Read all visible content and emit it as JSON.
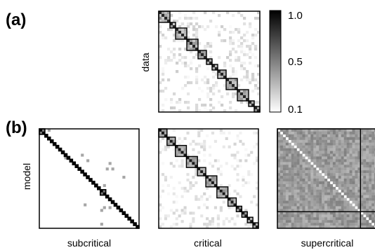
{
  "figure": {
    "panel_a_label": "(a)",
    "panel_b_label": "(b)",
    "row_label_data": "data",
    "row_label_model": "model",
    "col_labels": [
      "subcritical",
      "critical",
      "supercritical"
    ]
  },
  "colorbar": {
    "tick_labels": [
      "1.0",
      "0.5",
      "0.1"
    ],
    "ticks": [
      1.0,
      0.5,
      0.1
    ],
    "range": [
      0.1,
      1.0
    ],
    "colormap": "white-to-black grayscale"
  },
  "chart_data": [
    {
      "type": "heatmap",
      "panel": "(a)",
      "row_label": "data",
      "n": 36,
      "value_range": [
        0.1,
        1.0
      ],
      "blocks": [
        [
          0,
          4
        ],
        [
          4,
          2
        ],
        [
          6,
          4
        ],
        [
          10,
          4
        ],
        [
          14,
          3
        ],
        [
          17,
          2
        ],
        [
          19,
          2
        ],
        [
          21,
          3
        ],
        [
          24,
          4
        ],
        [
          28,
          4
        ],
        [
          32,
          2
        ],
        [
          34,
          2
        ]
      ],
      "description_level": "block-diagonal correlation with sparse weak off-diagonal values"
    },
    {
      "type": "heatmap",
      "panel": "(b)",
      "row_label": "model",
      "col_label": "subcritical",
      "n": 36,
      "value_range": [
        0.1,
        1.0
      ],
      "blocks": [
        [
          0,
          2
        ],
        [
          2,
          1
        ],
        [
          3,
          1
        ],
        [
          4,
          1
        ],
        [
          5,
          1
        ],
        [
          6,
          1
        ],
        [
          7,
          1
        ],
        [
          8,
          1
        ],
        [
          9,
          1
        ],
        [
          10,
          1
        ],
        [
          11,
          1
        ],
        [
          12,
          1
        ],
        [
          13,
          1
        ],
        [
          14,
          1
        ],
        [
          15,
          1
        ],
        [
          16,
          1
        ],
        [
          17,
          1
        ],
        [
          18,
          1
        ],
        [
          19,
          1
        ],
        [
          20,
          1
        ],
        [
          21,
          1
        ],
        [
          22,
          2
        ],
        [
          24,
          1
        ],
        [
          25,
          1
        ],
        [
          26,
          1
        ],
        [
          27,
          1
        ],
        [
          28,
          1
        ],
        [
          29,
          1
        ],
        [
          30,
          1
        ],
        [
          31,
          1
        ],
        [
          32,
          1
        ],
        [
          33,
          1
        ],
        [
          34,
          1
        ],
        [
          35,
          1
        ]
      ]
    },
    {
      "type": "heatmap",
      "panel": "(b)",
      "row_label": "model",
      "col_label": "critical",
      "n": 36,
      "value_range": [
        0.1,
        1.0
      ],
      "blocks": [
        [
          0,
          3
        ],
        [
          3,
          3
        ],
        [
          6,
          4
        ],
        [
          10,
          4
        ],
        [
          14,
          3
        ],
        [
          17,
          4
        ],
        [
          21,
          4
        ],
        [
          25,
          3
        ],
        [
          28,
          2
        ],
        [
          30,
          2
        ],
        [
          32,
          2
        ],
        [
          34,
          2
        ]
      ]
    },
    {
      "type": "heatmap",
      "panel": "(b)",
      "row_label": "model",
      "col_label": "supercritical",
      "n": 36,
      "value_range": [
        0.1,
        1.0
      ],
      "blocks": [
        [
          0,
          30
        ],
        [
          30,
          6
        ]
      ],
      "description_level": "dense mid-gray correlations everywhere, one large block spanning most modules"
    }
  ]
}
